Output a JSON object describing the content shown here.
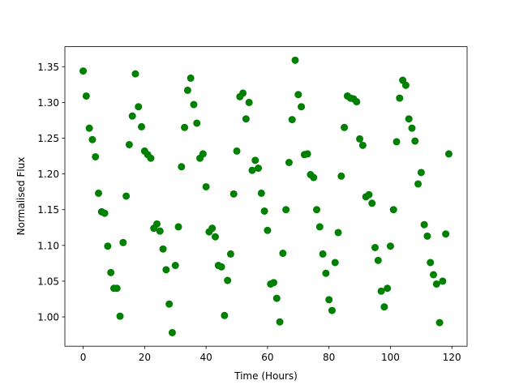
{
  "chart_data": {
    "type": "scatter",
    "xlabel": "Time (Hours)",
    "ylabel": "Normalised Flux",
    "color": "#008000",
    "x": [
      0,
      1,
      2,
      3,
      4,
      5,
      6,
      7,
      8,
      9,
      10,
      11,
      12,
      13,
      14,
      15,
      16,
      17,
      18,
      19,
      20,
      21,
      22,
      23,
      24,
      25,
      26,
      27,
      28,
      29,
      30,
      31,
      32,
      33,
      34,
      35,
      36,
      37,
      38,
      39,
      40,
      41,
      42,
      43,
      44,
      45,
      46,
      47,
      48,
      49,
      50,
      51,
      52,
      53,
      54,
      55,
      56,
      57,
      58,
      59,
      60,
      61,
      62,
      63,
      64,
      65,
      66,
      67,
      68,
      69,
      70,
      71,
      72,
      73,
      74,
      75,
      76,
      77,
      78,
      79,
      80,
      81,
      82,
      83,
      84,
      85,
      86,
      87,
      88,
      89,
      90,
      91,
      92,
      93,
      94,
      95,
      96,
      97,
      98,
      99,
      100,
      101,
      102,
      103,
      104,
      105,
      106,
      107,
      108,
      109,
      110,
      111,
      112,
      113,
      114,
      115,
      116,
      117,
      118,
      119
    ],
    "values": [
      1.344,
      1.309,
      1.264,
      1.248,
      1.224,
      1.173,
      1.147,
      1.145,
      1.099,
      1.062,
      1.04,
      1.04,
      1.001,
      1.104,
      1.169,
      1.241,
      1.281,
      1.34,
      1.294,
      1.266,
      1.232,
      1.227,
      1.222,
      1.124,
      1.13,
      1.12,
      1.095,
      1.066,
      1.018,
      0.978,
      1.072,
      1.126,
      1.21,
      1.265,
      1.317,
      1.334,
      1.297,
      1.271,
      1.222,
      1.228,
      1.182,
      1.119,
      1.124,
      1.112,
      1.072,
      1.07,
      1.002,
      1.051,
      1.088,
      1.172,
      1.232,
      1.308,
      1.313,
      1.277,
      1.3,
      1.205,
      1.219,
      1.208,
      1.173,
      1.148,
      1.121,
      1.046,
      1.048,
      1.026,
      0.993,
      1.089,
      1.15,
      1.216,
      1.276,
      1.359,
      1.311,
      1.294,
      1.227,
      1.228,
      1.199,
      1.195,
      1.15,
      1.126,
      1.088,
      1.061,
      1.024,
      1.009,
      1.076,
      1.118,
      1.197,
      1.265,
      1.309,
      1.306,
      1.305,
      1.301,
      1.249,
      1.24,
      1.168,
      1.171,
      1.159,
      1.097,
      1.079,
      1.036,
      1.014,
      1.04,
      1.099,
      1.15,
      1.245,
      1.306,
      1.331,
      1.324,
      1.277,
      1.264,
      1.246,
      1.186,
      1.202,
      1.129,
      1.113,
      1.076,
      1.059,
      1.046,
      0.992,
      1.05,
      1.116,
      1.228
    ],
    "xlim": [
      -5.95,
      124.95
    ],
    "xticks": [
      0,
      20,
      40,
      60,
      80,
      100,
      120
    ],
    "ylim": [
      0.959,
      1.378
    ],
    "yticks": [
      {
        "value": 1.0,
        "label": "1.00"
      },
      1.05,
      {
        "value": 1.1,
        "label": "1.10"
      },
      1.15,
      {
        "value": 1.2,
        "label": "1.20"
      },
      1.25,
      {
        "value": 1.3,
        "label": "1.30"
      },
      1.35
    ]
  }
}
